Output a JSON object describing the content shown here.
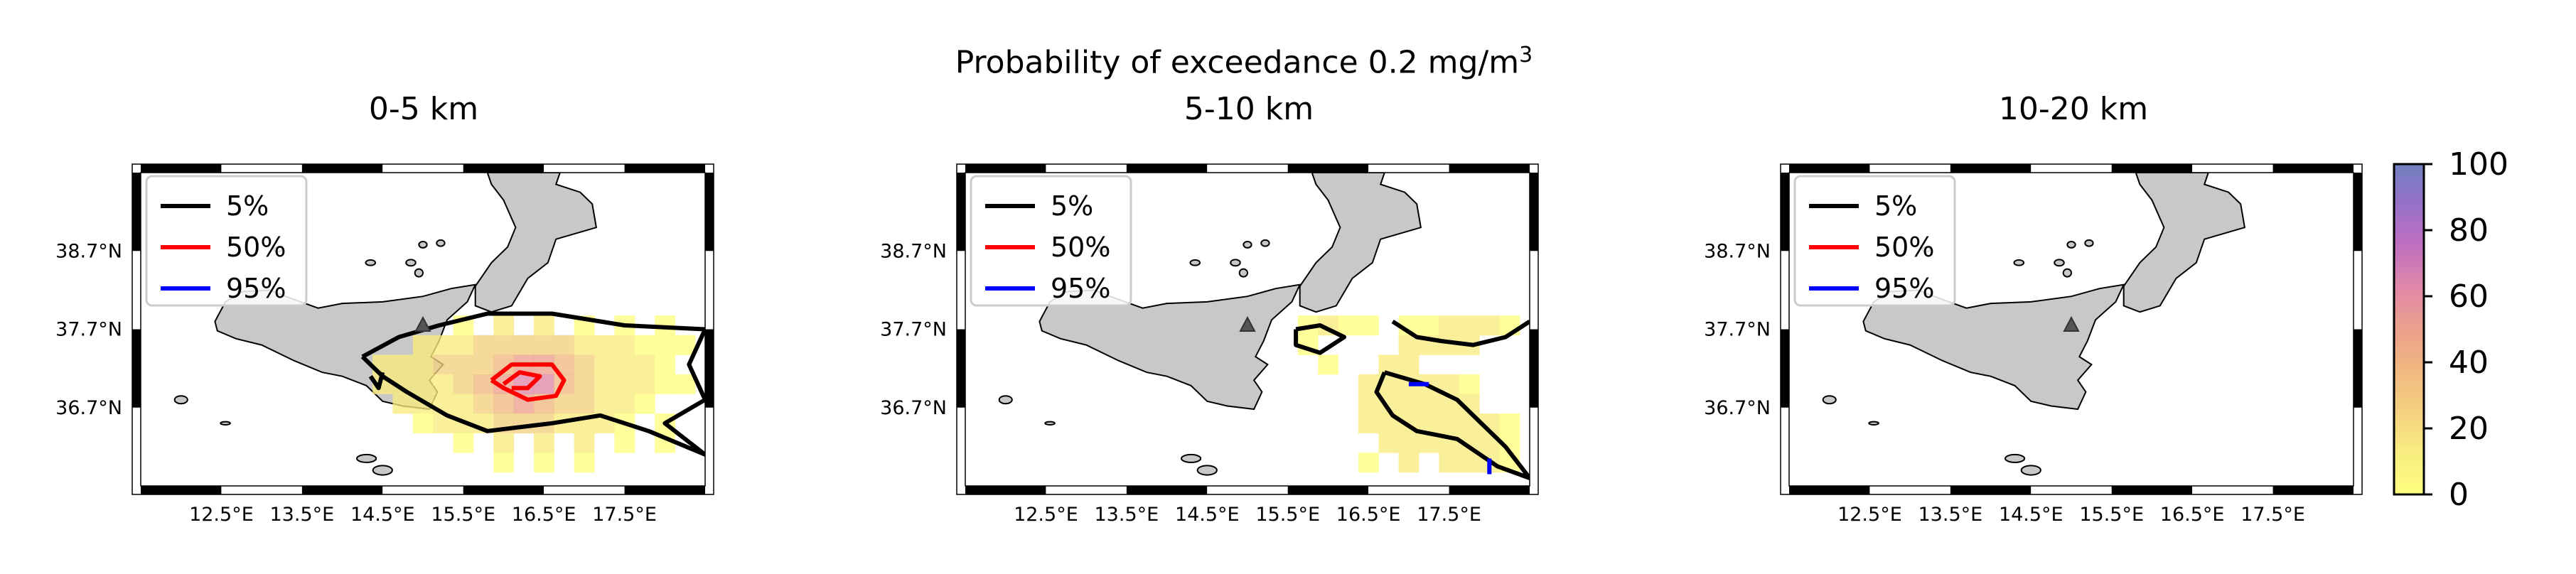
{
  "suptitle": "Probability of exceedance 0.2 mg/m",
  "suptitle_sup": "3",
  "colors": {
    "land": "#c8c8c8",
    "contour_5": "#000000",
    "contour_50": "#ff0000",
    "contour_95": "#0000ff",
    "cmap": [
      "#ffff80",
      "#f8ec80",
      "#f4d080",
      "#f0b880",
      "#eca08c",
      "#e088a8",
      "#c070c0",
      "#9870c8",
      "#7080c0"
    ]
  },
  "icons": {
    "volcano": "triangle-marker"
  },
  "chart_data": [
    {
      "type": "heatmap",
      "title": "0-5 km",
      "xlabel": "",
      "ylabel": "",
      "xlim": [
        11.5,
        18.5
      ],
      "ylim": [
        35.7,
        39.7
      ],
      "x_tick_labels": [
        "12.5°E",
        "13.5°E",
        "14.5°E",
        "15.5°E",
        "16.5°E",
        "17.5°E"
      ],
      "x_ticks": [
        12.5,
        13.5,
        14.5,
        15.5,
        16.5,
        17.5
      ],
      "y_tick_labels": [
        "38.7°N",
        "37.7°N",
        "36.7°N"
      ],
      "y_ticks": [
        38.7,
        37.7,
        36.7
      ],
      "volcano": {
        "lon": 15.0,
        "lat": 37.75
      },
      "legend": {
        "placement": "top-left",
        "entries": [
          "5%",
          "50%",
          "95%"
        ]
      },
      "grid": false,
      "cell_size": 0.25,
      "cells": [
        [
          15.0,
          37.5,
          12
        ],
        [
          15.0,
          37.25,
          15
        ],
        [
          15.0,
          37.0,
          12
        ],
        [
          15.25,
          37.5,
          15
        ],
        [
          15.25,
          37.25,
          20
        ],
        [
          15.25,
          37.0,
          18
        ],
        [
          15.25,
          36.75,
          12
        ],
        [
          14.5,
          37.25,
          10
        ],
        [
          14.5,
          37.0,
          12
        ],
        [
          14.75,
          37.25,
          14
        ],
        [
          14.75,
          37.0,
          16
        ],
        [
          14.75,
          36.75,
          10
        ],
        [
          15.5,
          37.5,
          18
        ],
        [
          15.5,
          37.25,
          25
        ],
        [
          15.5,
          37.0,
          25
        ],
        [
          15.5,
          36.75,
          18
        ],
        [
          15.75,
          37.5,
          20
        ],
        [
          15.75,
          37.25,
          30
        ],
        [
          15.75,
          37.0,
          35
        ],
        [
          15.75,
          36.75,
          25
        ],
        [
          15.75,
          36.5,
          15
        ],
        [
          16.0,
          37.5,
          25
        ],
        [
          16.0,
          37.25,
          40
        ],
        [
          16.0,
          37.0,
          52
        ],
        [
          16.0,
          36.75,
          38
        ],
        [
          16.0,
          36.5,
          20
        ],
        [
          16.25,
          37.5,
          28
        ],
        [
          16.25,
          37.25,
          55
        ],
        [
          16.25,
          37.0,
          62
        ],
        [
          16.25,
          36.75,
          45
        ],
        [
          16.25,
          36.5,
          25
        ],
        [
          16.5,
          37.5,
          25
        ],
        [
          16.5,
          37.25,
          50
        ],
        [
          16.5,
          37.0,
          58
        ],
        [
          16.5,
          36.75,
          42
        ],
        [
          16.5,
          36.5,
          22
        ],
        [
          16.75,
          37.5,
          20
        ],
        [
          16.75,
          37.25,
          38
        ],
        [
          16.75,
          37.0,
          42
        ],
        [
          16.75,
          36.75,
          30
        ],
        [
          16.75,
          36.5,
          18
        ],
        [
          17.0,
          37.5,
          15
        ],
        [
          17.0,
          37.25,
          25
        ],
        [
          17.0,
          37.0,
          28
        ],
        [
          17.0,
          36.75,
          20
        ],
        [
          17.0,
          36.5,
          12
        ],
        [
          17.25,
          37.5,
          12
        ],
        [
          17.25,
          37.25,
          15
        ],
        [
          17.25,
          37.0,
          18
        ],
        [
          17.25,
          36.75,
          12
        ],
        [
          17.25,
          36.5,
          8
        ],
        [
          17.5,
          37.5,
          8
        ],
        [
          17.5,
          37.25,
          10
        ],
        [
          17.5,
          37.0,
          12
        ],
        [
          17.5,
          36.75,
          8
        ],
        [
          17.75,
          37.5,
          6
        ],
        [
          17.75,
          37.25,
          8
        ],
        [
          17.75,
          37.0,
          8
        ],
        [
          17.75,
          36.75,
          6
        ],
        [
          18.0,
          37.5,
          5
        ],
        [
          18.0,
          37.25,
          6
        ],
        [
          18.0,
          37.0,
          5
        ],
        [
          18.25,
          37.5,
          4
        ],
        [
          18.25,
          37.0,
          4
        ],
        [
          16.0,
          37.75,
          8
        ],
        [
          16.5,
          37.75,
          8
        ],
        [
          17.0,
          37.75,
          6
        ],
        [
          17.5,
          37.75,
          5
        ],
        [
          18.0,
          37.75,
          4
        ],
        [
          15.5,
          37.75,
          6
        ],
        [
          15.5,
          36.5,
          10
        ],
        [
          15.25,
          36.5,
          8
        ],
        [
          15.0,
          36.75,
          8
        ],
        [
          16.0,
          36.25,
          12
        ],
        [
          16.5,
          36.25,
          12
        ],
        [
          17.0,
          36.25,
          8
        ],
        [
          17.5,
          36.5,
          6
        ],
        [
          17.5,
          36.25,
          5
        ],
        [
          18.0,
          36.5,
          4
        ],
        [
          18.0,
          36.25,
          3
        ],
        [
          16.0,
          36.0,
          6
        ],
        [
          16.5,
          36.0,
          6
        ],
        [
          17.0,
          36.0,
          5
        ],
        [
          15.5,
          36.25,
          6
        ],
        [
          15.0,
          36.5,
          6
        ]
      ],
      "contours": [
        {
          "level": "5%",
          "path": [
            [
              14.25,
              37.35
            ],
            [
              14.7,
              37.6
            ],
            [
              15.2,
              37.75
            ],
            [
              15.8,
              37.9
            ],
            [
              16.6,
              37.9
            ],
            [
              17.5,
              37.75
            ],
            [
              18.5,
              37.7
            ],
            [
              18.3,
              37.25
            ],
            [
              18.5,
              36.8
            ],
            [
              18.0,
              36.5
            ],
            [
              18.5,
              36.1
            ],
            [
              17.8,
              36.4
            ],
            [
              17.2,
              36.6
            ],
            [
              16.6,
              36.5
            ],
            [
              15.8,
              36.4
            ],
            [
              15.3,
              36.6
            ],
            [
              14.8,
              36.9
            ],
            [
              14.5,
              37.1
            ],
            [
              14.25,
              37.35
            ]
          ]
        },
        {
          "level": "5%",
          "path": [
            [
              14.35,
              37.1
            ],
            [
              14.45,
              36.95
            ],
            [
              14.5,
              37.15
            ]
          ]
        },
        {
          "level": "50%",
          "path": [
            [
              15.85,
              37.05
            ],
            [
              16.1,
              37.25
            ],
            [
              16.6,
              37.25
            ],
            [
              16.75,
              37.05
            ],
            [
              16.65,
              36.85
            ],
            [
              16.3,
              36.8
            ],
            [
              16.0,
              36.95
            ],
            [
              15.85,
              37.05
            ]
          ]
        },
        {
          "level": "50%",
          "path": [
            [
              16.0,
              37.0
            ],
            [
              16.2,
              37.15
            ],
            [
              16.45,
              37.1
            ],
            [
              16.3,
              36.95
            ],
            [
              16.1,
              36.95
            ]
          ]
        }
      ]
    },
    {
      "type": "heatmap",
      "title": "5-10 km",
      "xlabel": "",
      "ylabel": "",
      "xlim": [
        11.5,
        18.5
      ],
      "ylim": [
        35.7,
        39.7
      ],
      "x_tick_labels": [
        "12.5°E",
        "13.5°E",
        "14.5°E",
        "15.5°E",
        "16.5°E",
        "17.5°E"
      ],
      "x_ticks": [
        12.5,
        13.5,
        14.5,
        15.5,
        16.5,
        17.5
      ],
      "y_tick_labels": [
        "38.7°N",
        "37.7°N",
        "36.7°N"
      ],
      "y_ticks": [
        38.7,
        37.7,
        36.7
      ],
      "volcano": {
        "lon": 15.0,
        "lat": 37.75
      },
      "legend": {
        "placement": "top-left",
        "entries": [
          "5%",
          "50%",
          "95%"
        ]
      },
      "grid": false,
      "cell_size": 0.25,
      "cells": [
        [
          15.75,
          37.75,
          5
        ],
        [
          16.0,
          37.75,
          8
        ],
        [
          16.25,
          37.75,
          6
        ],
        [
          16.5,
          37.75,
          5
        ],
        [
          17.0,
          37.75,
          5
        ],
        [
          17.25,
          37.75,
          6
        ],
        [
          17.5,
          37.75,
          8
        ],
        [
          17.75,
          37.75,
          10
        ],
        [
          18.0,
          37.75,
          8
        ],
        [
          17.0,
          37.5,
          10
        ],
        [
          17.25,
          37.5,
          12
        ],
        [
          17.5,
          37.5,
          10
        ],
        [
          17.75,
          37.5,
          8
        ],
        [
          16.75,
          37.25,
          8
        ],
        [
          17.0,
          37.25,
          10
        ],
        [
          16.5,
          37.0,
          8
        ],
        [
          16.75,
          37.0,
          12
        ],
        [
          17.0,
          37.0,
          14
        ],
        [
          17.25,
          37.0,
          10
        ],
        [
          17.5,
          37.0,
          8
        ],
        [
          17.75,
          37.0,
          6
        ],
        [
          16.5,
          36.75,
          10
        ],
        [
          16.75,
          36.75,
          12
        ],
        [
          17.0,
          36.75,
          15
        ],
        [
          17.25,
          36.75,
          12
        ],
        [
          17.5,
          36.75,
          10
        ],
        [
          17.75,
          36.75,
          8
        ],
        [
          16.5,
          36.5,
          8
        ],
        [
          16.75,
          36.5,
          10
        ],
        [
          17.0,
          36.5,
          12
        ],
        [
          17.25,
          36.5,
          12
        ],
        [
          17.5,
          36.5,
          10
        ],
        [
          17.75,
          36.5,
          10
        ],
        [
          18.0,
          36.5,
          8
        ],
        [
          16.75,
          36.25,
          8
        ],
        [
          17.0,
          36.25,
          10
        ],
        [
          17.25,
          36.25,
          10
        ],
        [
          17.5,
          36.25,
          10
        ],
        [
          17.75,
          36.25,
          12
        ],
        [
          18.0,
          36.25,
          8
        ],
        [
          18.25,
          36.25,
          6
        ],
        [
          16.5,
          36.0,
          6
        ],
        [
          17.0,
          36.0,
          8
        ],
        [
          17.5,
          36.0,
          8
        ],
        [
          17.75,
          36.0,
          10
        ],
        [
          18.0,
          36.0,
          8
        ],
        [
          18.25,
          36.0,
          6
        ],
        [
          15.75,
          37.5,
          4
        ],
        [
          16.0,
          37.25,
          4
        ],
        [
          18.25,
          37.75,
          6
        ],
        [
          18.25,
          36.5,
          6
        ]
      ],
      "contours": [
        {
          "level": "5%",
          "path": [
            [
              15.6,
              37.7
            ],
            [
              15.9,
              37.75
            ],
            [
              16.2,
              37.6
            ],
            [
              15.9,
              37.4
            ],
            [
              15.6,
              37.5
            ],
            [
              15.6,
              37.7
            ]
          ]
        },
        {
          "level": "5%",
          "path": [
            [
              16.8,
              37.8
            ],
            [
              17.1,
              37.6
            ],
            [
              17.4,
              37.55
            ],
            [
              17.8,
              37.5
            ],
            [
              18.2,
              37.6
            ],
            [
              18.5,
              37.8
            ]
          ]
        },
        {
          "level": "5%",
          "path": [
            [
              16.7,
              37.15
            ],
            [
              17.2,
              37.0
            ],
            [
              17.6,
              36.8
            ],
            [
              17.9,
              36.5
            ],
            [
              18.2,
              36.2
            ],
            [
              18.5,
              35.8
            ],
            [
              18.1,
              35.95
            ],
            [
              17.6,
              36.3
            ],
            [
              17.1,
              36.4
            ],
            [
              16.8,
              36.6
            ],
            [
              16.6,
              36.9
            ],
            [
              16.7,
              37.15
            ]
          ]
        }
      ],
      "blue_marks": [
        [
          [
            17.0,
            37.0
          ],
          [
            17.25,
            37.0
          ]
        ],
        [
          [
            18.0,
            36.05
          ],
          [
            18.0,
            35.85
          ]
        ]
      ]
    },
    {
      "type": "heatmap",
      "title": "10-20 km",
      "xlabel": "",
      "ylabel": "",
      "xlim": [
        11.5,
        18.5
      ],
      "ylim": [
        35.7,
        39.7
      ],
      "x_tick_labels": [
        "12.5°E",
        "13.5°E",
        "14.5°E",
        "15.5°E",
        "16.5°E",
        "17.5°E"
      ],
      "x_ticks": [
        12.5,
        13.5,
        14.5,
        15.5,
        16.5,
        17.5
      ],
      "y_tick_labels": [
        "38.7°N",
        "37.7°N",
        "36.7°N"
      ],
      "y_ticks": [
        38.7,
        37.7,
        36.7
      ],
      "volcano": {
        "lon": 15.0,
        "lat": 37.75
      },
      "legend": {
        "placement": "top-left",
        "entries": [
          "5%",
          "50%",
          "95%"
        ]
      },
      "grid": false,
      "cell_size": 0.25,
      "cells": [],
      "contours": []
    }
  ],
  "colorbar": {
    "min": 0,
    "max": 100,
    "tick_labels": [
      "0",
      "20",
      "40",
      "60",
      "80",
      "100"
    ],
    "ticks": [
      0,
      20,
      40,
      60,
      80,
      100
    ]
  }
}
